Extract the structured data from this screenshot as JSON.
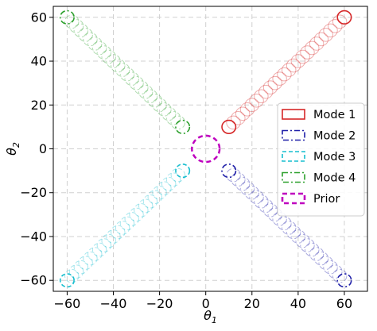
{
  "chart_data": {
    "type": "scatter",
    "title": "",
    "xlabel": "θ",
    "xlabel_subscript": "1",
    "ylabel": "θ",
    "ylabel_subscript": "2",
    "xlim": [
      -66,
      70
    ],
    "ylim": [
      -65,
      65
    ],
    "xticks": [
      -60,
      -40,
      -20,
      0,
      20,
      40,
      60
    ],
    "yticks": [
      -60,
      -40,
      -20,
      0,
      20,
      40,
      60
    ],
    "xtick_labels": [
      "−60",
      "−40",
      "−20",
      "0",
      "20",
      "40",
      "60"
    ],
    "ytick_labels": [
      "−60",
      "−40",
      "−20",
      "0",
      "20",
      "40",
      "60"
    ],
    "grid": true,
    "legend_position": "center-right",
    "circle_radius": 3,
    "prior_radius": 6,
    "trail_steps": 25,
    "series": [
      {
        "name": "Mode 1",
        "color": "#d62728",
        "dash": "solid",
        "start": [
          10,
          10
        ],
        "end": [
          60,
          60
        ]
      },
      {
        "name": "Mode 2",
        "color": "#1f1fa8",
        "dash": "dashdot",
        "start": [
          10,
          -10
        ],
        "end": [
          60,
          -60
        ]
      },
      {
        "name": "Mode 3",
        "color": "#17becf",
        "dash": "dashed",
        "start": [
          -10,
          -10
        ],
        "end": [
          -60,
          -60
        ]
      },
      {
        "name": "Mode 4",
        "color": "#2ca02c",
        "dash": "dashdot",
        "start": [
          -10,
          10
        ],
        "end": [
          -60,
          60
        ]
      },
      {
        "name": "Prior",
        "color": "#bf00bf",
        "dash": "dashed-bold",
        "center": [
          0,
          0
        ]
      }
    ]
  }
}
